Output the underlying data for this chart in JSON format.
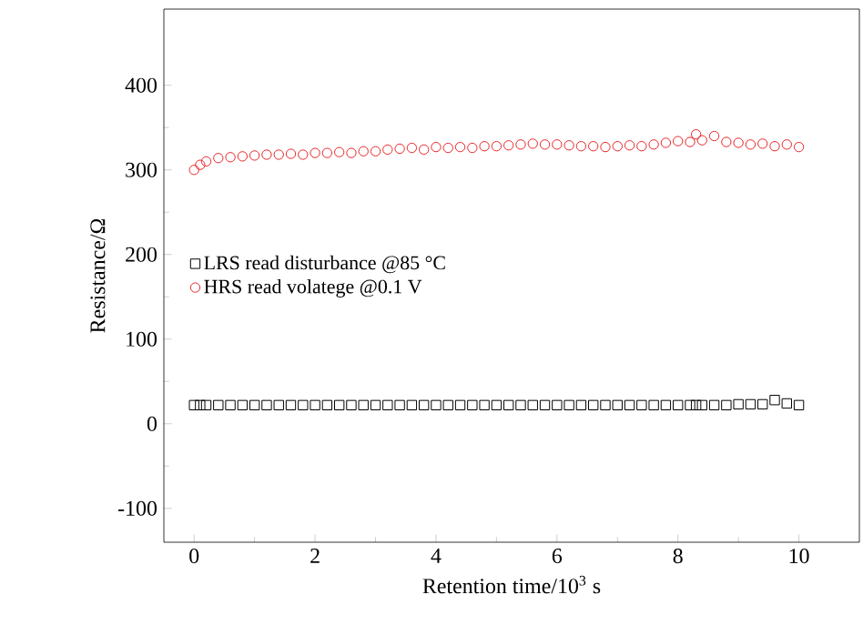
{
  "chart_data": {
    "type": "scatter",
    "xlabel": "Retention time/10$^{3}$ s",
    "ylabel": "Resistance/Ω",
    "x": [
      0,
      0.1,
      0.2,
      0.4,
      0.6,
      0.8,
      1.0,
      1.2,
      1.4,
      1.6,
      1.8,
      2.0,
      2.2,
      2.4,
      2.6,
      2.8,
      3.0,
      3.2,
      3.4,
      3.6,
      3.8,
      4.0,
      4.2,
      4.4,
      4.6,
      4.8,
      5.0,
      5.2,
      5.4,
      5.6,
      5.8,
      6.0,
      6.2,
      6.4,
      6.6,
      6.8,
      7.0,
      7.2,
      7.4,
      7.6,
      7.8,
      8.0,
      8.2,
      8.3,
      8.4,
      8.6,
      8.8,
      9.0,
      9.2,
      9.4,
      9.6,
      9.8,
      10.0
    ],
    "series": [
      {
        "name": "LRS read disturbance @85 °C",
        "color": "#000000",
        "marker": "square",
        "values": [
          22,
          22,
          22,
          22,
          22,
          22,
          22,
          22,
          22,
          22,
          22,
          22,
          22,
          22,
          22,
          22,
          22,
          22,
          22,
          22,
          22,
          22,
          22,
          22,
          22,
          22,
          22,
          22,
          22,
          22,
          22,
          22,
          22,
          22,
          22,
          22,
          22,
          22,
          22,
          22,
          22,
          22,
          22,
          22,
          22,
          22,
          22,
          23,
          23,
          23,
          28,
          24,
          22
        ]
      },
      {
        "name": "HRS read volatege    @0.1 V",
        "color": "#e8272a",
        "marker": "circle",
        "values": [
          300,
          306,
          310,
          314,
          315,
          316,
          317,
          318,
          318,
          319,
          318,
          320,
          320,
          321,
          320,
          322,
          322,
          324,
          325,
          326,
          324,
          327,
          326,
          327,
          326,
          328,
          328,
          329,
          330,
          331,
          330,
          330,
          329,
          328,
          328,
          327,
          328,
          329,
          328,
          330,
          332,
          334,
          333,
          342,
          335,
          340,
          333,
          332,
          330,
          331,
          328,
          330,
          327
        ]
      }
    ],
    "xlim": [
      -0.5,
      11
    ],
    "ylim": [
      -140,
      490
    ],
    "xticks": [
      0,
      2,
      4,
      6,
      8,
      10
    ],
    "yticks": [
      -100,
      0,
      100,
      200,
      300,
      400
    ],
    "legend": "left",
    "grid": false
  }
}
